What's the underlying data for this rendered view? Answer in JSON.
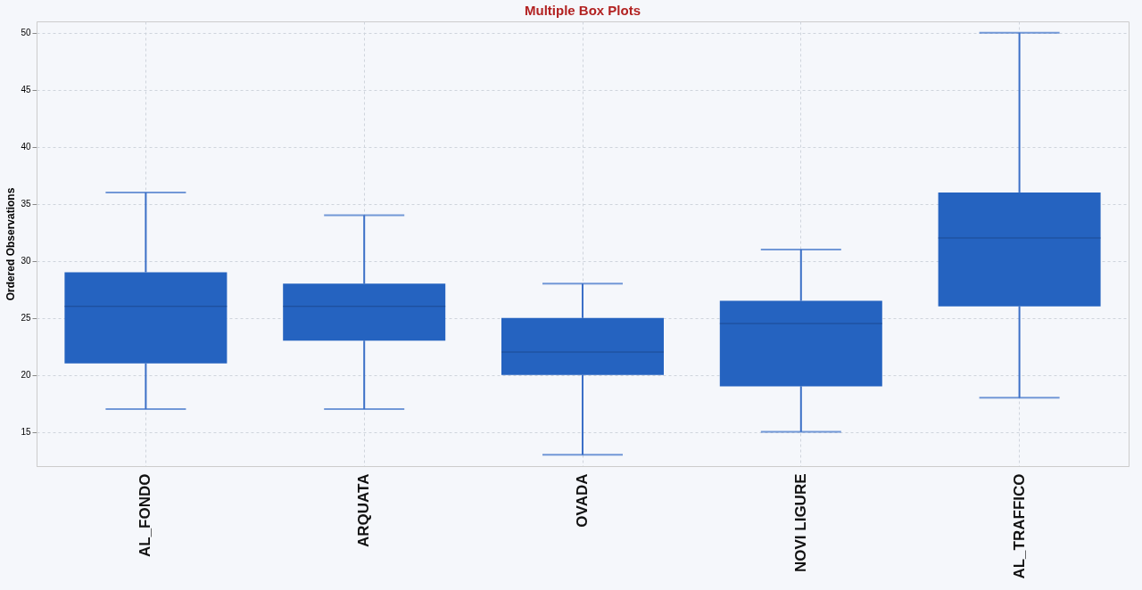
{
  "chart_data": {
    "type": "box",
    "title": "Multiple Box Plots",
    "ylabel": "Ordered Observations",
    "categories": [
      "AL_FONDO",
      "ARQUATA",
      "OVADA",
      "NOVI LIGURE",
      "AL_TRAFFICO"
    ],
    "color": "#2563c0",
    "boxes": [
      {
        "low": 17,
        "q1": 21,
        "median": 26,
        "q3": 29,
        "high": 36
      },
      {
        "low": 17,
        "q1": 23,
        "median": 26,
        "q3": 28,
        "high": 34
      },
      {
        "low": 13,
        "q1": 20,
        "median": 22,
        "q3": 25,
        "high": 28
      },
      {
        "low": 15,
        "q1": 19,
        "median": 24.5,
        "q3": 26.5,
        "high": 31
      },
      {
        "low": 18,
        "q1": 26,
        "median": 32,
        "q3": 36,
        "high": 50
      }
    ],
    "ylim": [
      12,
      51
    ],
    "yticks": [
      15,
      20,
      25,
      30,
      35,
      40,
      45,
      50
    ],
    "grid": true
  }
}
